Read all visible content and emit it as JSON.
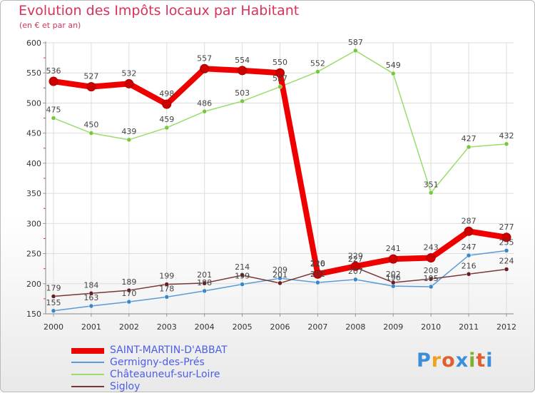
{
  "chart_data": {
    "type": "line",
    "title": "Evolution des Impôts locaux par Habitant",
    "subtitle": "(en € et par an)",
    "xlabel": "",
    "ylabel": "",
    "ylim": [
      150,
      600
    ],
    "yticks": [
      150,
      200,
      250,
      300,
      350,
      400,
      450,
      500,
      550,
      600
    ],
    "categories": [
      "2000",
      "2001",
      "2002",
      "2003",
      "2004",
      "2005",
      "2006",
      "2007",
      "2008",
      "2009",
      "2010",
      "2011",
      "2012"
    ],
    "grid": true,
    "series": [
      {
        "name": "SAINT-MARTIN-D'ABBAT",
        "color": "#ee0000",
        "marker_color": "#cc0000",
        "values": [
          536,
          527,
          532,
          498,
          557,
          554,
          550,
          216,
          229,
          241,
          243,
          287,
          277
        ]
      },
      {
        "name": "Germigny-des-Prés",
        "color": "#5b9bd5",
        "marker_color": "#3a87c8",
        "values": [
          155,
          163,
          170,
          178,
          188,
          199,
          209,
          202,
          207,
          196,
          195,
          247,
          255
        ]
      },
      {
        "name": "Châteauneuf-sur-Loire",
        "color": "#9bdc6b",
        "marker_color": "#78c83c",
        "values": [
          475,
          450,
          439,
          459,
          486,
          503,
          527,
          552,
          587,
          549,
          351,
          427,
          432
        ]
      },
      {
        "name": "Sigloy",
        "color": "#7a3538",
        "marker_color": "#6a1c20",
        "values": [
          179,
          184,
          189,
          199,
          201,
          214,
          201,
          220,
          227,
          202,
          208,
          216,
          224
        ]
      }
    ]
  },
  "legend": {
    "items": [
      {
        "label": "SAINT-MARTIN-D'ABBAT"
      },
      {
        "label": "Germigny-des-Prés"
      },
      {
        "label": "Châteauneuf-sur-Loire"
      },
      {
        "label": "Sigloy"
      }
    ]
  },
  "brand": {
    "letters": [
      "P",
      "r",
      "o",
      "x",
      "i",
      "t",
      "i"
    ]
  }
}
